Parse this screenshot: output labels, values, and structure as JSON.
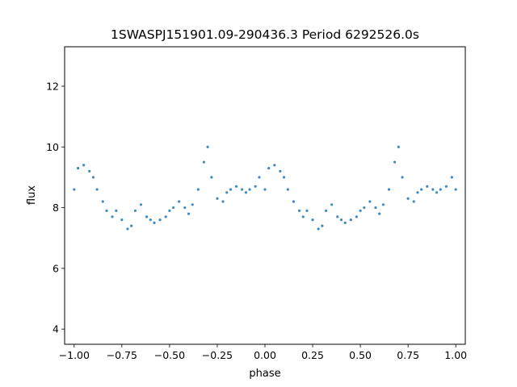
{
  "chart_data": {
    "type": "scatter",
    "title": "1SWASPJ151901.09-290436.3 Period 6292526.0s",
    "xlabel": "phase",
    "ylabel": "flux",
    "xlim": [
      -1.05,
      1.05
    ],
    "ylim": [
      3.5,
      13.3
    ],
    "xticks": [
      -1.0,
      -0.75,
      -0.5,
      -0.25,
      0.0,
      0.25,
      0.5,
      0.75,
      1.0
    ],
    "xtick_labels": [
      "−1.00",
      "−0.75",
      "−0.50",
      "−0.25",
      "0.00",
      "0.25",
      "0.50",
      "0.75",
      "1.00"
    ],
    "yticks": [
      4,
      6,
      8,
      10,
      12
    ],
    "ytick_labels": [
      "4",
      "6",
      "8",
      "10",
      "12"
    ],
    "grid": false,
    "legend": "none",
    "marker_color": "#1f77b4",
    "series": [
      {
        "x": [
          -1.0,
          -0.98,
          -0.95,
          -0.92,
          -0.9,
          -0.88,
          -0.85,
          -0.83,
          -0.8,
          -0.78,
          -0.75,
          -0.72,
          -0.7,
          -0.68,
          -0.65,
          -0.62,
          -0.6,
          -0.58,
          -0.55,
          -0.52,
          -0.5,
          -0.48,
          -0.45,
          -0.42,
          -0.4,
          -0.38,
          -0.35,
          -0.32,
          -0.3,
          -0.28,
          -0.25,
          -0.22,
          -0.2,
          -0.18,
          -0.15,
          -0.12,
          -0.1,
          -0.08,
          -0.05,
          -0.03,
          0.0,
          0.02,
          0.05,
          0.08,
          0.1,
          0.12,
          0.15,
          0.18,
          0.2,
          0.22,
          0.25,
          0.28,
          0.3,
          0.32,
          0.35,
          0.38,
          0.4,
          0.42,
          0.45,
          0.48,
          0.5,
          0.52,
          0.55,
          0.58,
          0.6,
          0.62,
          0.65,
          0.68,
          0.7,
          0.72,
          0.75,
          0.78,
          0.8,
          0.82,
          0.85,
          0.88,
          0.9,
          0.92,
          0.95,
          0.98,
          1.0
        ],
        "y": [
          8.6,
          9.3,
          9.4,
          9.2,
          9.0,
          8.6,
          8.2,
          7.9,
          7.7,
          7.9,
          7.6,
          7.3,
          7.4,
          7.9,
          8.1,
          7.7,
          7.6,
          7.5,
          7.6,
          7.7,
          7.9,
          8.0,
          8.2,
          8.0,
          7.8,
          8.1,
          8.6,
          9.5,
          10.0,
          9.0,
          8.3,
          8.2,
          8.5,
          8.6,
          8.7,
          8.6,
          8.5,
          8.6,
          8.7,
          9.0,
          8.6,
          9.3,
          9.4,
          9.2,
          9.0,
          8.6,
          8.2,
          7.9,
          7.7,
          7.9,
          7.6,
          7.3,
          7.4,
          7.9,
          8.1,
          7.7,
          7.6,
          7.5,
          7.6,
          7.7,
          7.9,
          8.0,
          8.2,
          8.0,
          7.8,
          8.1,
          8.6,
          9.5,
          10.0,
          9.0,
          8.3,
          8.2,
          8.5,
          8.6,
          8.7,
          8.6,
          8.5,
          8.6,
          8.7,
          9.0,
          8.6
        ]
      }
    ]
  }
}
